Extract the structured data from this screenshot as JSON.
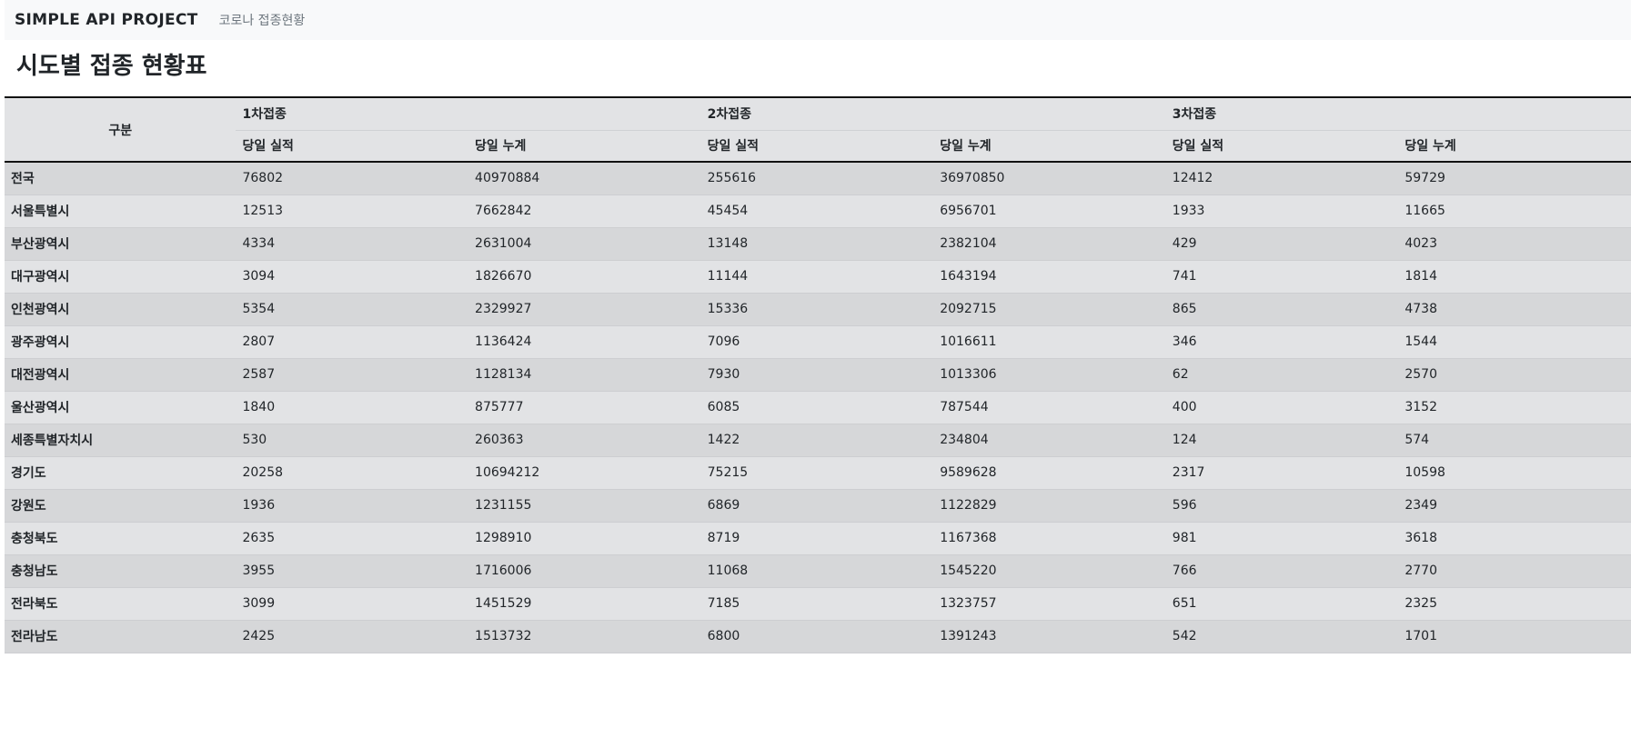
{
  "navbar": {
    "brand": "SIMPLE API PROJECT",
    "link": "코로나 접종현황"
  },
  "page_title": "시도별 접종 현황표",
  "table": {
    "group_header": "구분",
    "doses": [
      "1차접종",
      "2차접종",
      "3차접종"
    ],
    "sub_headers": [
      "당일 실적",
      "당일 누계"
    ],
    "rows": [
      {
        "region": "전국",
        "values": [
          "76802",
          "40970884",
          "255616",
          "36970850",
          "12412",
          "59729"
        ]
      },
      {
        "region": "서울특별시",
        "values": [
          "12513",
          "7662842",
          "45454",
          "6956701",
          "1933",
          "11665"
        ]
      },
      {
        "region": "부산광역시",
        "values": [
          "4334",
          "2631004",
          "13148",
          "2382104",
          "429",
          "4023"
        ]
      },
      {
        "region": "대구광역시",
        "values": [
          "3094",
          "1826670",
          "11144",
          "1643194",
          "741",
          "1814"
        ]
      },
      {
        "region": "인천광역시",
        "values": [
          "5354",
          "2329927",
          "15336",
          "2092715",
          "865",
          "4738"
        ]
      },
      {
        "region": "광주광역시",
        "values": [
          "2807",
          "1136424",
          "7096",
          "1016611",
          "346",
          "1544"
        ]
      },
      {
        "region": "대전광역시",
        "values": [
          "2587",
          "1128134",
          "7930",
          "1013306",
          "62",
          "2570"
        ]
      },
      {
        "region": "울산광역시",
        "values": [
          "1840",
          "875777",
          "6085",
          "787544",
          "400",
          "3152"
        ]
      },
      {
        "region": "세종특별자치시",
        "values": [
          "530",
          "260363",
          "1422",
          "234804",
          "124",
          "574"
        ]
      },
      {
        "region": "경기도",
        "values": [
          "20258",
          "10694212",
          "75215",
          "9589628",
          "2317",
          "10598"
        ]
      },
      {
        "region": "강원도",
        "values": [
          "1936",
          "1231155",
          "6869",
          "1122829",
          "596",
          "2349"
        ]
      },
      {
        "region": "충청북도",
        "values": [
          "2635",
          "1298910",
          "8719",
          "1167368",
          "981",
          "3618"
        ]
      },
      {
        "region": "충청남도",
        "values": [
          "3955",
          "1716006",
          "11068",
          "1545220",
          "766",
          "2770"
        ]
      },
      {
        "region": "전라북도",
        "values": [
          "3099",
          "1451529",
          "7185",
          "1323757",
          "651",
          "2325"
        ]
      },
      {
        "region": "전라남도",
        "values": [
          "2425",
          "1513732",
          "6800",
          "1391243",
          "542",
          "1701"
        ]
      }
    ]
  }
}
